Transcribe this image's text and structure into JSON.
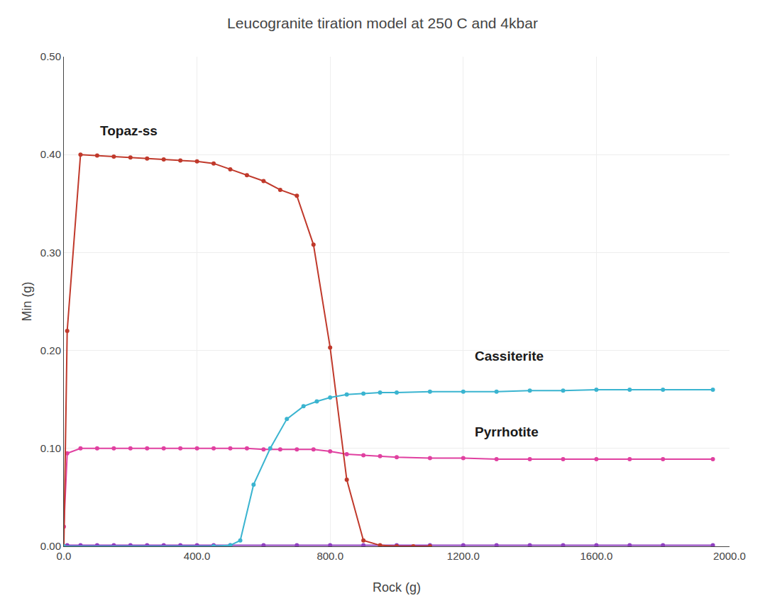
{
  "chart_data": {
    "type": "line",
    "title": "Leucogranite tiration model at 250 C and 4kbar",
    "xlabel": "Rock (g)",
    "ylabel": "Min (g)",
    "xlim": [
      0,
      2000
    ],
    "ylim": [
      0,
      0.5
    ],
    "xticks": [
      {
        "value": 0,
        "label": "0.0"
      },
      {
        "value": 400,
        "label": "400.0"
      },
      {
        "value": 800,
        "label": "800.0"
      },
      {
        "value": 1200,
        "label": "1200.0"
      },
      {
        "value": 1600,
        "label": "1600.0"
      },
      {
        "value": 2000,
        "label": "2000.0"
      }
    ],
    "yticks": [
      {
        "value": 0,
        "label": "0.00"
      },
      {
        "value": 0.1,
        "label": "0.10"
      },
      {
        "value": 0.2,
        "label": "0.20"
      },
      {
        "value": 0.3,
        "label": "0.30"
      },
      {
        "value": 0.4,
        "label": "0.40"
      },
      {
        "value": 0.5,
        "label": "0.50"
      }
    ],
    "grid": true,
    "marker": "circle",
    "line_style": "solid",
    "series": [
      {
        "color": "#9040c0",
        "x": [
          0,
          10,
          50,
          100,
          150,
          200,
          250,
          300,
          350,
          400,
          450,
          500,
          600,
          700,
          800,
          900,
          1000,
          1100,
          1200,
          1300,
          1400,
          1500,
          1600,
          1700,
          1800,
          1950
        ],
        "values": [
          0.0,
          0.001,
          0.001,
          0.001,
          0.001,
          0.001,
          0.001,
          0.001,
          0.001,
          0.001,
          0.001,
          0.001,
          0.001,
          0.001,
          0.001,
          0.001,
          0.001,
          0.001,
          0.001,
          0.001,
          0.001,
          0.001,
          0.001,
          0.001,
          0.001,
          0.001
        ]
      },
      {
        "color": "#e040a0",
        "x": [
          0,
          10,
          50,
          100,
          150,
          200,
          250,
          300,
          350,
          400,
          450,
          500,
          550,
          600,
          650,
          700,
          750,
          800,
          850,
          900,
          950,
          1000,
          1100,
          1200,
          1300,
          1400,
          1500,
          1600,
          1700,
          1800,
          1950
        ],
        "values": [
          0.02,
          0.095,
          0.1,
          0.1,
          0.1,
          0.1,
          0.1,
          0.1,
          0.1,
          0.1,
          0.1,
          0.1,
          0.1,
          0.099,
          0.099,
          0.099,
          0.099,
          0.097,
          0.094,
          0.093,
          0.092,
          0.091,
          0.09,
          0.09,
          0.089,
          0.089,
          0.089,
          0.089,
          0.089,
          0.089,
          0.089
        ]
      },
      {
        "color": "#c0392b",
        "x": [
          0,
          10,
          50,
          100,
          150,
          200,
          250,
          300,
          350,
          400,
          450,
          500,
          550,
          600,
          650,
          700,
          750,
          800,
          850,
          900,
          950,
          1000,
          1050,
          1100
        ],
        "values": [
          0.0,
          0.22,
          0.4,
          0.399,
          0.398,
          0.397,
          0.396,
          0.395,
          0.394,
          0.393,
          0.391,
          0.385,
          0.379,
          0.373,
          0.364,
          0.358,
          0.308,
          0.203,
          0.068,
          0.006,
          0.001,
          0.0,
          0.0,
          0.0
        ]
      },
      {
        "color": "#3ab4d0",
        "x": [
          0,
          450,
          500,
          530,
          570,
          620,
          670,
          720,
          760,
          800,
          850,
          900,
          950,
          1000,
          1100,
          1200,
          1300,
          1400,
          1500,
          1600,
          1700,
          1800,
          1950
        ],
        "values": [
          0.0,
          0.0,
          0.001,
          0.006,
          0.063,
          0.1,
          0.13,
          0.143,
          0.148,
          0.152,
          0.155,
          0.156,
          0.157,
          0.157,
          0.158,
          0.158,
          0.158,
          0.159,
          0.159,
          0.16,
          0.16,
          0.16,
          0.16
        ]
      }
    ],
    "annotations": [
      {
        "text": "Topaz-ss",
        "x": 105,
        "y": 0.415
      },
      {
        "text": "Cassiterite",
        "x": 1230,
        "y": 0.185
      },
      {
        "text": "Pyrrhotite",
        "x": 1230,
        "y": 0.108
      }
    ]
  }
}
